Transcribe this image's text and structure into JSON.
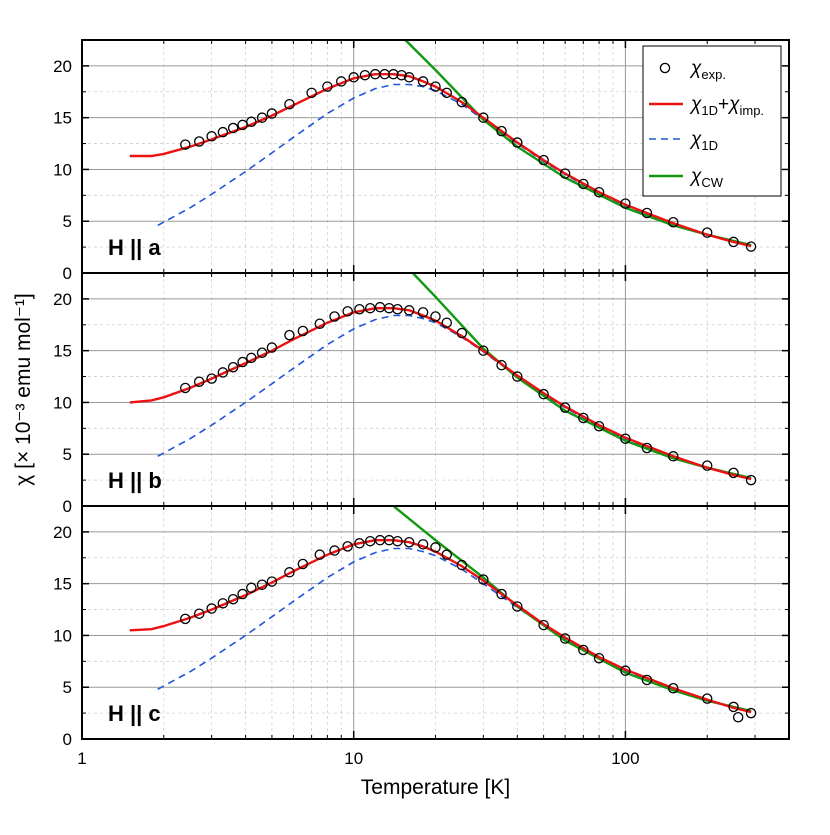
{
  "chart_data": {
    "type": "scatter",
    "xlabel": "Temperature [K]",
    "ylabel": "χ [× 10⁻³ emu mol⁻¹]",
    "xscale": "log",
    "xlim": [
      1,
      400
    ],
    "ylim": [
      0,
      22.5
    ],
    "x_ticks": [
      1,
      10,
      100
    ],
    "x_tick_labels": [
      "1",
      "10",
      "100"
    ],
    "y_ticks": [
      0,
      5,
      10,
      15,
      20
    ],
    "y_tick_labels": [
      "0",
      "5",
      "10",
      "15",
      "20"
    ],
    "grid": true,
    "legend_position": "top-right",
    "legend": [
      {
        "symbol": "χ",
        "sub": "exp.",
        "style": "open-circle",
        "color": "#000000"
      },
      {
        "symbol": "χ",
        "sub": "1D",
        "symbol2": "χ",
        "sub2": "imp.",
        "style": "solid-line",
        "color": "#ee1111"
      },
      {
        "symbol": "χ",
        "sub": "1D",
        "style": "dashed-line",
        "color": "#2255dd"
      },
      {
        "symbol": "χ",
        "sub": "CW",
        "style": "solid-line",
        "color": "#119911"
      }
    ],
    "panels": [
      {
        "label": "H || a",
        "exp": {
          "T": [
            2.4,
            2.7,
            3.0,
            3.3,
            3.6,
            3.9,
            4.2,
            4.6,
            5.0,
            5.8,
            7.0,
            8.0,
            9.0,
            10.0,
            11.0,
            12.0,
            13.0,
            14.0,
            15.0,
            16.0,
            18.0,
            20.0,
            22.0,
            25.0,
            30.0,
            35.0,
            40.0,
            50.0,
            60.0,
            70.0,
            80.0,
            100.0,
            120.0,
            150.0,
            200.0,
            250.0,
            290.0
          ],
          "chi": [
            12.4,
            12.7,
            13.2,
            13.6,
            14.0,
            14.3,
            14.6,
            15.0,
            15.4,
            16.3,
            17.4,
            18.0,
            18.5,
            18.9,
            19.1,
            19.2,
            19.2,
            19.2,
            19.1,
            18.9,
            18.5,
            18.0,
            17.4,
            16.5,
            15.0,
            13.7,
            12.6,
            10.9,
            9.6,
            8.6,
            7.8,
            6.7,
            5.8,
            4.9,
            3.9,
            3.0,
            2.55
          ]
        },
        "fit_1d_imp": {
          "T": [
            1.5,
            1.8,
            2.0,
            2.5,
            3.0,
            4.0,
            5.0,
            6.0,
            8.0,
            10.0,
            12.0,
            14.0,
            16.0,
            18.0,
            20.0,
            25.0,
            30.0,
            40.0,
            50.0,
            60.0,
            80.0,
            100.0,
            150.0,
            200.0,
            250.0,
            290.0
          ],
          "chi": [
            11.3,
            11.3,
            11.5,
            12.2,
            12.9,
            14.1,
            15.2,
            16.2,
            17.8,
            18.8,
            19.2,
            19.2,
            19.0,
            18.5,
            18.0,
            16.5,
            15.0,
            12.6,
            10.9,
            9.6,
            7.8,
            6.6,
            4.8,
            3.7,
            3.0,
            2.6
          ]
        },
        "fit_1d": {
          "T": [
            1.9,
            2.5,
            3.0,
            4.0,
            5.0,
            6.0,
            8.0,
            10.0,
            12.0,
            14.0,
            16.0,
            18.0,
            20.0,
            25.0,
            30.0,
            40.0,
            50.0,
            60.0,
            80.0,
            100.0,
            150.0,
            200.0,
            250.0,
            290.0
          ],
          "chi": [
            4.6,
            6.3,
            7.6,
            9.8,
            11.6,
            13.1,
            15.4,
            16.9,
            17.8,
            18.2,
            18.2,
            18.0,
            17.6,
            16.3,
            14.8,
            12.5,
            10.8,
            9.5,
            7.7,
            6.5,
            4.8,
            3.7,
            3.0,
            2.6
          ]
        },
        "cw": {
          "T": [
            15.5,
            20.0,
            30.0,
            40.0,
            60.0,
            100.0,
            150.0,
            200.0,
            290.0
          ],
          "chi": [
            22.5,
            19.6,
            14.8,
            12.2,
            9.2,
            6.3,
            4.6,
            3.7,
            2.7
          ]
        }
      },
      {
        "label": "H || b",
        "exp": {
          "T": [
            2.4,
            2.7,
            3.0,
            3.3,
            3.6,
            3.9,
            4.2,
            4.6,
            5.0,
            5.8,
            6.5,
            7.5,
            8.5,
            9.5,
            10.5,
            11.5,
            12.5,
            13.5,
            14.5,
            16.0,
            18.0,
            20.0,
            22.0,
            25.0,
            30.0,
            35.0,
            40.0,
            50.0,
            60.0,
            70.0,
            80.0,
            100.0,
            120.0,
            150.0,
            200.0,
            250.0,
            290.0
          ],
          "chi": [
            11.4,
            12.0,
            12.3,
            12.9,
            13.4,
            13.9,
            14.3,
            14.8,
            15.3,
            16.5,
            16.9,
            17.6,
            18.3,
            18.8,
            19.0,
            19.1,
            19.2,
            19.1,
            19.0,
            18.9,
            18.7,
            18.3,
            17.7,
            16.7,
            15.0,
            13.6,
            12.5,
            10.8,
            9.5,
            8.5,
            7.7,
            6.5,
            5.6,
            4.8,
            3.9,
            3.2,
            2.5
          ]
        },
        "fit_1d_imp": {
          "T": [
            1.5,
            1.8,
            2.0,
            2.5,
            3.0,
            4.0,
            5.0,
            6.0,
            8.0,
            10.0,
            12.0,
            14.0,
            16.0,
            18.0,
            20.0,
            25.0,
            30.0,
            40.0,
            50.0,
            60.0,
            80.0,
            100.0,
            150.0,
            200.0,
            250.0,
            290.0
          ],
          "chi": [
            10.0,
            10.2,
            10.5,
            11.4,
            12.3,
            13.8,
            15.0,
            16.1,
            17.7,
            18.7,
            19.1,
            19.1,
            18.9,
            18.4,
            17.9,
            16.4,
            15.0,
            12.6,
            10.9,
            9.6,
            7.8,
            6.6,
            4.8,
            3.7,
            3.0,
            2.6
          ]
        },
        "fit_1d": {
          "T": [
            1.9,
            2.5,
            3.0,
            4.0,
            5.0,
            6.0,
            8.0,
            10.0,
            12.0,
            14.0,
            16.0,
            18.0,
            20.0,
            25.0,
            30.0,
            40.0,
            50.0,
            60.0,
            80.0,
            100.0,
            150.0,
            200.0,
            250.0,
            290.0
          ],
          "chi": [
            4.8,
            6.5,
            7.8,
            10.0,
            11.8,
            13.3,
            15.6,
            17.1,
            18.0,
            18.4,
            18.4,
            18.1,
            17.7,
            16.3,
            14.9,
            12.5,
            10.8,
            9.5,
            7.7,
            6.5,
            4.8,
            3.7,
            3.0,
            2.6
          ]
        },
        "cw": {
          "T": [
            16.5,
            20.0,
            30.0,
            40.0,
            60.0,
            100.0,
            150.0,
            200.0,
            290.0
          ],
          "chi": [
            22.5,
            20.2,
            15.2,
            12.4,
            9.2,
            6.3,
            4.6,
            3.7,
            2.7
          ]
        }
      },
      {
        "label": "H || c",
        "exp": {
          "T": [
            2.4,
            2.7,
            3.0,
            3.3,
            3.6,
            3.9,
            4.2,
            4.6,
            5.0,
            5.8,
            6.5,
            7.5,
            8.5,
            9.5,
            10.5,
            11.5,
            12.5,
            13.5,
            14.5,
            16.0,
            18.0,
            20.0,
            22.0,
            25.0,
            30.0,
            35.0,
            40.0,
            50.0,
            60.0,
            70.0,
            80.0,
            100.0,
            120.0,
            150.0,
            200.0,
            250.0,
            260.0,
            290.0
          ],
          "chi": [
            11.6,
            12.1,
            12.6,
            13.1,
            13.5,
            14.0,
            14.6,
            14.9,
            15.2,
            16.1,
            16.9,
            17.8,
            18.2,
            18.6,
            18.9,
            19.1,
            19.2,
            19.2,
            19.1,
            19.0,
            18.8,
            18.5,
            17.8,
            16.8,
            15.4,
            14.0,
            12.8,
            11.0,
            9.7,
            8.6,
            7.8,
            6.6,
            5.7,
            4.9,
            3.9,
            3.1,
            2.1,
            2.5
          ]
        },
        "fit_1d_imp": {
          "T": [
            1.5,
            1.8,
            2.0,
            2.5,
            3.0,
            4.0,
            5.0,
            6.0,
            8.0,
            10.0,
            12.0,
            14.0,
            16.0,
            18.0,
            20.0,
            25.0,
            30.0,
            40.0,
            50.0,
            60.0,
            80.0,
            100.0,
            150.0,
            200.0,
            250.0,
            290.0
          ],
          "chi": [
            10.5,
            10.6,
            10.9,
            11.7,
            12.5,
            13.9,
            15.1,
            16.2,
            17.8,
            18.8,
            19.2,
            19.2,
            19.0,
            18.6,
            18.1,
            16.7,
            15.3,
            12.9,
            11.1,
            9.8,
            7.9,
            6.7,
            4.9,
            3.8,
            3.0,
            2.6
          ]
        },
        "fit_1d": {
          "T": [
            1.9,
            2.5,
            3.0,
            4.0,
            5.0,
            6.0,
            8.0,
            10.0,
            12.0,
            14.0,
            16.0,
            18.0,
            20.0,
            25.0,
            30.0,
            40.0,
            50.0,
            60.0,
            80.0,
            100.0,
            150.0,
            200.0,
            250.0,
            290.0
          ],
          "chi": [
            4.8,
            6.5,
            7.8,
            10.0,
            11.8,
            13.3,
            15.6,
            17.1,
            18.0,
            18.4,
            18.4,
            18.1,
            17.7,
            16.4,
            15.0,
            12.7,
            11.0,
            9.7,
            7.8,
            6.6,
            4.9,
            3.8,
            3.0,
            2.6
          ]
        },
        "cw": {
          "T": [
            14.0,
            20.0,
            30.0,
            40.0,
            60.0,
            100.0,
            150.0,
            200.0,
            290.0
          ],
          "chi": [
            22.5,
            19.2,
            15.6,
            12.8,
            9.5,
            6.4,
            4.7,
            3.7,
            2.7
          ]
        }
      }
    ]
  }
}
